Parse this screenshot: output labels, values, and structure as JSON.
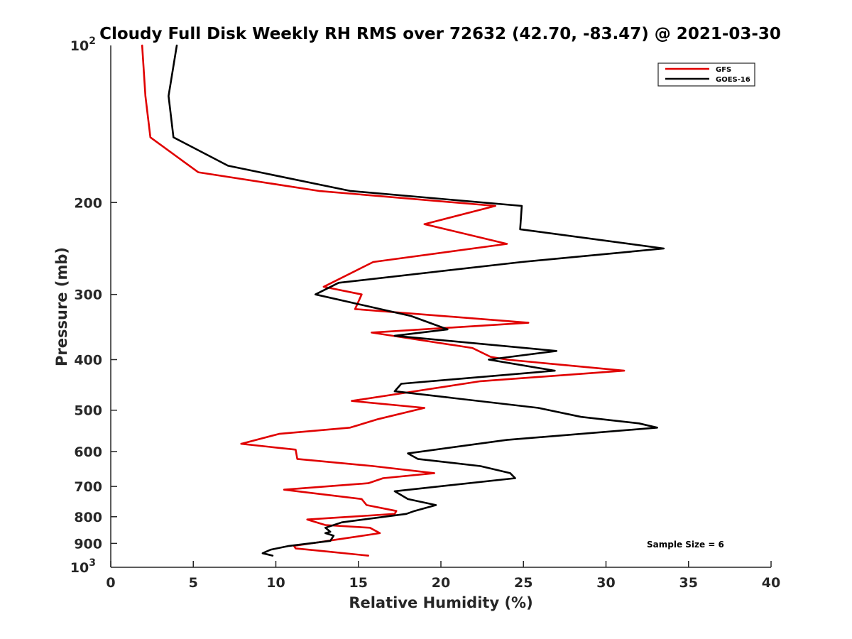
{
  "chart_data": {
    "type": "line",
    "title": "Cloudy Full Disk Weekly RH RMS over 72632 (42.70, -83.47) @ 2021-03-30",
    "xlabel": "Relative Humidity (%)",
    "ylabel": "Pressure (mb)",
    "xlim": [
      0,
      40
    ],
    "ylim": [
      100,
      1000
    ],
    "y_scale": "log",
    "y_reversed": true,
    "x_ticks": [
      "0",
      "5",
      "10",
      "15",
      "20",
      "25",
      "30",
      "35",
      "40"
    ],
    "x_tick_values": [
      0,
      5,
      10,
      15,
      20,
      25,
      30,
      35,
      40
    ],
    "y_tick_values": [
      100,
      200,
      300,
      400,
      500,
      600,
      700,
      800,
      900,
      1000
    ],
    "y_ticks": [
      {
        "base": "10",
        "exp": "2"
      },
      {
        "base": "200",
        "exp": ""
      },
      {
        "base": "300",
        "exp": ""
      },
      {
        "base": "400",
        "exp": ""
      },
      {
        "base": "500",
        "exp": ""
      },
      {
        "base": "600",
        "exp": ""
      },
      {
        "base": "700",
        "exp": ""
      },
      {
        "base": "800",
        "exp": ""
      },
      {
        "base": "900",
        "exp": ""
      },
      {
        "base": "10",
        "exp": "3"
      }
    ],
    "grid": false,
    "legend_position": "top-right",
    "annotation": "Sample Size = 6",
    "series": [
      {
        "name": "GFS",
        "color": "#e00000",
        "points": [
          [
            1.9,
            100
          ],
          [
            2.1,
            125
          ],
          [
            2.4,
            150
          ],
          [
            5.3,
            175
          ],
          [
            12.6,
            190
          ],
          [
            23.3,
            203
          ],
          [
            19.0,
            220
          ],
          [
            24.0,
            240
          ],
          [
            15.9,
            260
          ],
          [
            12.9,
            290
          ],
          [
            15.2,
            300
          ],
          [
            14.8,
            320
          ],
          [
            25.3,
            340
          ],
          [
            15.8,
            355
          ],
          [
            21.9,
            380
          ],
          [
            23.0,
            395
          ],
          [
            24.0,
            400
          ],
          [
            31.1,
            420
          ],
          [
            22.4,
            440
          ],
          [
            14.6,
            480
          ],
          [
            19.0,
            495
          ],
          [
            16.2,
            520
          ],
          [
            14.5,
            540
          ],
          [
            10.2,
            555
          ],
          [
            7.9,
            580
          ],
          [
            11.2,
            595
          ],
          [
            11.3,
            620
          ],
          [
            15.9,
            640
          ],
          [
            19.6,
            660
          ],
          [
            16.5,
            675
          ],
          [
            15.6,
            690
          ],
          [
            10.5,
            710
          ],
          [
            15.2,
            740
          ],
          [
            15.5,
            760
          ],
          [
            17.3,
            780
          ],
          [
            17.2,
            790
          ],
          [
            11.9,
            810
          ],
          [
            13.0,
            830
          ],
          [
            15.7,
            840
          ],
          [
            16.3,
            860
          ],
          [
            14.2,
            880
          ],
          [
            11.1,
            910
          ],
          [
            11.2,
            920
          ],
          [
            12.7,
            930
          ],
          [
            15.6,
            950
          ]
        ]
      },
      {
        "name": "GOES-16",
        "color": "#000000",
        "points": [
          [
            4.0,
            100
          ],
          [
            3.5,
            125
          ],
          [
            3.8,
            150
          ],
          [
            7.1,
            170
          ],
          [
            14.5,
            190
          ],
          [
            24.9,
            203
          ],
          [
            24.8,
            225
          ],
          [
            33.5,
            245
          ],
          [
            24.9,
            260
          ],
          [
            13.8,
            285
          ],
          [
            12.4,
            300
          ],
          [
            18.2,
            330
          ],
          [
            20.4,
            350
          ],
          [
            17.2,
            360
          ],
          [
            27.0,
            385
          ],
          [
            22.9,
            400
          ],
          [
            26.9,
            420
          ],
          [
            17.6,
            445
          ],
          [
            17.2,
            460
          ],
          [
            25.9,
            495
          ],
          [
            28.5,
            515
          ],
          [
            32.0,
            530
          ],
          [
            33.1,
            540
          ],
          [
            24.0,
            570
          ],
          [
            18.0,
            605
          ],
          [
            18.6,
            620
          ],
          [
            22.4,
            640
          ],
          [
            24.2,
            660
          ],
          [
            24.5,
            675
          ],
          [
            17.2,
            715
          ],
          [
            18.0,
            740
          ],
          [
            19.7,
            760
          ],
          [
            18.4,
            780
          ],
          [
            17.9,
            790
          ],
          [
            14.0,
            820
          ],
          [
            13.0,
            840
          ],
          [
            13.3,
            855
          ],
          [
            13.0,
            860
          ],
          [
            13.5,
            870
          ],
          [
            13.3,
            890
          ],
          [
            10.8,
            910
          ],
          [
            9.7,
            925
          ],
          [
            9.2,
            940
          ],
          [
            9.8,
            950
          ]
        ]
      }
    ]
  }
}
